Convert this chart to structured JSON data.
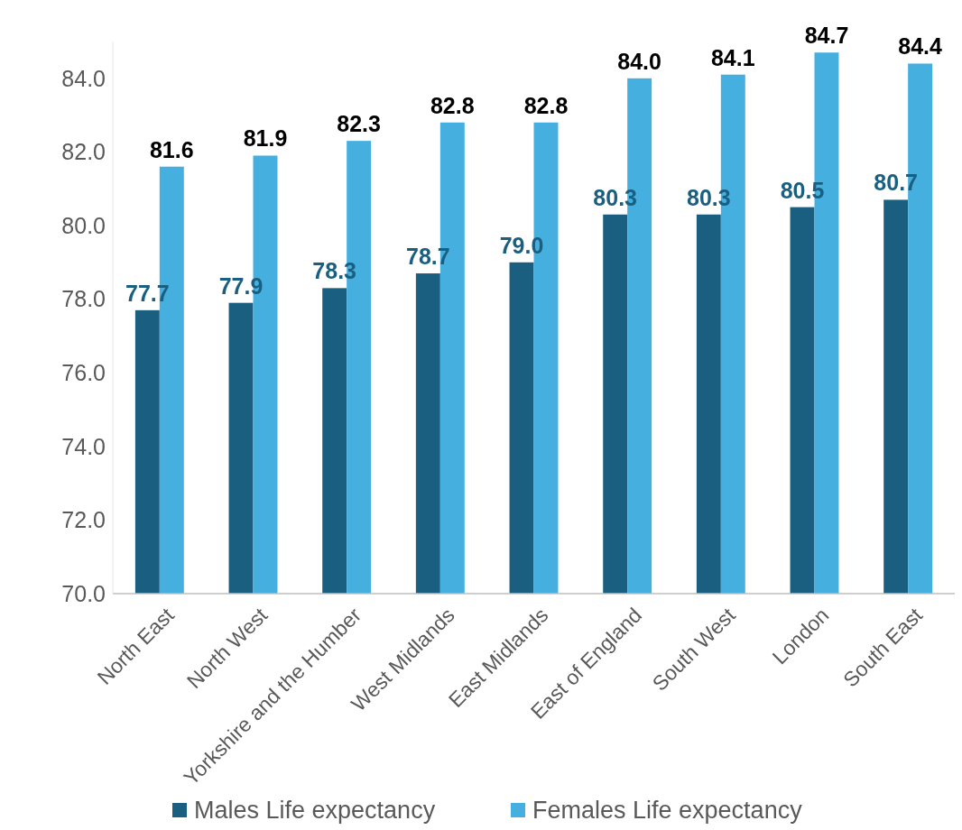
{
  "chart_data": {
    "type": "bar",
    "categories": [
      "North East",
      "North West",
      "Yorkshire and the Humber",
      "West Midlands",
      "East Midlands",
      "East of England",
      "South West",
      "London",
      "South East"
    ],
    "series": [
      {
        "name": "Males Life expectancy",
        "color": "#1a5f80",
        "values": [
          77.7,
          77.9,
          78.3,
          78.7,
          79.0,
          80.3,
          80.3,
          80.5,
          80.7
        ],
        "value_labels": [
          "77.7",
          "77.9",
          "78.3",
          "78.7",
          "79.0",
          "80.3",
          "80.3",
          "80.5",
          "80.7"
        ]
      },
      {
        "name": "Females Life expectancy",
        "color": "#45afe0",
        "values": [
          81.6,
          81.9,
          82.3,
          82.8,
          82.8,
          84.0,
          84.1,
          84.7,
          84.4
        ],
        "value_labels": [
          "81.6",
          "81.9",
          "82.3",
          "82.8",
          "82.8",
          "84.0",
          "84.1",
          "84.7",
          "84.4"
        ]
      }
    ],
    "ylim": [
      70,
      85
    ],
    "yticks": [
      {
        "value": 70,
        "label": "70.0"
      },
      {
        "value": 72,
        "label": "72.0"
      },
      {
        "value": 74,
        "label": "74.0"
      },
      {
        "value": 76,
        "label": "76.0"
      },
      {
        "value": 78,
        "label": "78.0"
      },
      {
        "value": 80,
        "label": "80.0"
      },
      {
        "value": 82,
        "label": "82.0"
      },
      {
        "value": 84,
        "label": "84.0"
      }
    ],
    "legend": "bottom"
  }
}
